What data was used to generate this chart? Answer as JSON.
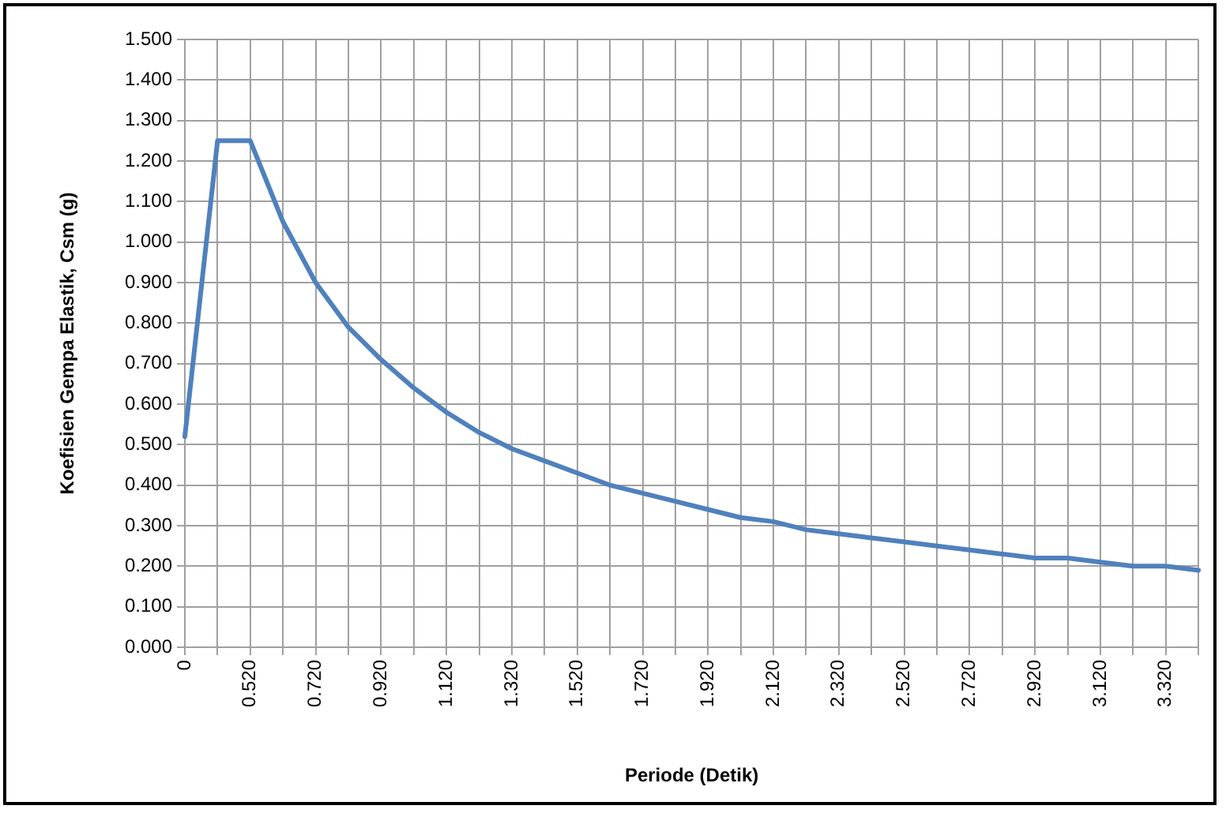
{
  "chart_data": {
    "type": "line",
    "xlabel": "Periode (Detik)",
    "ylabel": "Koefisien Gempa Elastik, Csm (g)",
    "categories": [
      "0",
      null,
      "0.520",
      null,
      "0.720",
      null,
      "0.920",
      null,
      "1.120",
      null,
      "1.320",
      null,
      "1.520",
      null,
      "1.720",
      null,
      "1.920",
      null,
      "2.120",
      null,
      "2.320",
      null,
      "2.520",
      null,
      "2.720",
      null,
      "2.920",
      null,
      "3.120",
      null,
      "3.320",
      null
    ],
    "series": [
      {
        "color": "#4f81bd",
        "values": [
          0.52,
          1.25,
          1.25,
          1.05,
          0.9,
          0.79,
          0.71,
          0.64,
          0.58,
          0.53,
          0.49,
          0.46,
          0.43,
          0.4,
          0.38,
          0.36,
          0.34,
          0.32,
          0.31,
          0.29,
          0.28,
          0.27,
          0.26,
          0.25,
          0.24,
          0.23,
          0.22,
          0.22,
          0.21,
          0.2,
          0.2,
          0.19
        ]
      }
    ],
    "ylim": [
      0,
      1.5
    ],
    "yticks": [
      {
        "value": 0,
        "label": "0.000"
      },
      {
        "value": 0.1,
        "label": "0.100"
      },
      {
        "value": 0.2,
        "label": "0.200"
      },
      {
        "value": 0.3,
        "label": "0.300"
      },
      {
        "value": 0.4,
        "label": "0.400"
      },
      {
        "value": 0.5,
        "label": "0.500"
      },
      {
        "value": 0.6,
        "label": "0.600"
      },
      {
        "value": 0.7,
        "label": "0.700"
      },
      {
        "value": 0.8,
        "label": "0.800"
      },
      {
        "value": 0.9,
        "label": "0.900"
      },
      {
        "value": 1.0,
        "label": "1.000"
      },
      {
        "value": 1.1,
        "label": "1.100"
      },
      {
        "value": 1.2,
        "label": "1.200"
      },
      {
        "value": 1.3,
        "label": "1.300"
      },
      {
        "value": 1.4,
        "label": "1.400"
      },
      {
        "value": 1.5,
        "label": "1.500"
      }
    ],
    "grid": true,
    "marker": "none",
    "line_style": "solid"
  }
}
